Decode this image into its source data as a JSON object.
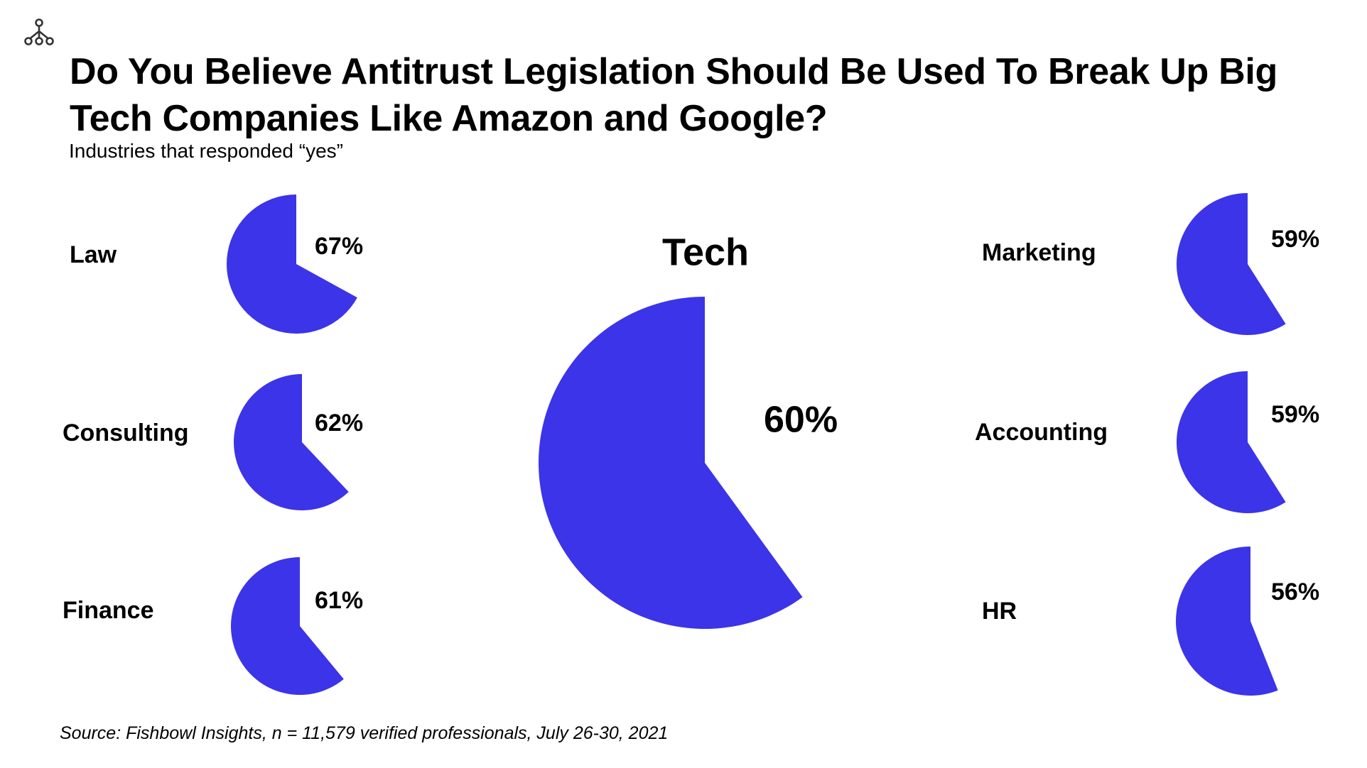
{
  "title": "Do You Believe Antitrust Legislation Should Be Used To Break Up Big Tech Companies Like Amazon and Google?",
  "subtitle": "Industries that responded “yes”",
  "source": "Source: Fishbowl Insights, n = 11,579 verified professionals, July 26-30, 2021",
  "logo_icon": "network-nodes-icon",
  "colors": {
    "pie": "#3C34E8",
    "text": "#000000",
    "logo": "#333333"
  },
  "chart_data": {
    "type": "pie",
    "title": "Do You Believe Antitrust Legislation Should Be Used To Break Up Big Tech Companies Like Amazon and Google?",
    "subtitle": "Industries that responded “yes”",
    "series": [
      {
        "name": "Law",
        "value": 67,
        "value_label": "67%"
      },
      {
        "name": "Consulting",
        "value": 62,
        "value_label": "62%"
      },
      {
        "name": "Finance",
        "value": 61,
        "value_label": "61%"
      },
      {
        "name": "Tech",
        "value": 60,
        "value_label": "60%"
      },
      {
        "name": "Marketing",
        "value": 59,
        "value_label": "59%"
      },
      {
        "name": "Accounting",
        "value": 59,
        "value_label": "59%"
      },
      {
        "name": "HR",
        "value": 56,
        "value_label": "56%"
      }
    ]
  }
}
